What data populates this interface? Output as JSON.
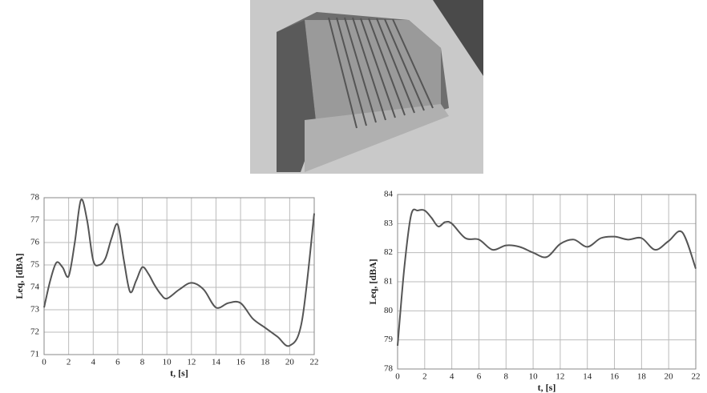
{
  "chart_data": [
    {
      "type": "line",
      "x_label": "t, [s]",
      "y_label": "Leq, [dBA]",
      "x": [
        0,
        0.5,
        1,
        1.5,
        2,
        2.5,
        3,
        3.5,
        4,
        4.5,
        5,
        5.5,
        6,
        6.5,
        7,
        7.5,
        8,
        8.5,
        9,
        9.5,
        10,
        11,
        12,
        13,
        14,
        15,
        16,
        17,
        18,
        19,
        20,
        21,
        22
      ],
      "series": [
        {
          "color": "#555555",
          "values": [
            73.1,
            74.3,
            75.1,
            74.9,
            74.5,
            76.0,
            77.9,
            77.0,
            75.2,
            75.0,
            75.3,
            76.2,
            76.8,
            75.2,
            73.8,
            74.3,
            74.9,
            74.6,
            74.1,
            73.7,
            73.5,
            73.9,
            74.2,
            73.9,
            73.1,
            73.3,
            73.3,
            72.6,
            72.2,
            71.8,
            71.4,
            72.5,
            77.3
          ]
        }
      ],
      "xlim": [
        0,
        22
      ],
      "xticks": [
        0,
        2,
        4,
        6,
        8,
        10,
        12,
        14,
        16,
        18,
        20,
        22
      ],
      "ylim": [
        71,
        78
      ],
      "yticks": [
        71,
        72,
        73,
        74,
        75,
        76,
        77,
        78
      ],
      "grid": true
    },
    {
      "type": "line",
      "x_label": "t, [s]",
      "y_label": "Leq, [dBA]",
      "x": [
        0,
        0.5,
        1,
        1.5,
        2,
        2.5,
        3,
        3.5,
        4,
        5,
        6,
        7,
        8,
        9,
        10,
        11,
        12,
        13,
        14,
        15,
        16,
        17,
        18,
        19,
        20,
        21,
        22
      ],
      "series": [
        {
          "color": "#555555",
          "values": [
            78.8,
            81.5,
            83.3,
            83.45,
            83.45,
            83.2,
            82.9,
            83.05,
            83.0,
            82.5,
            82.45,
            82.1,
            82.25,
            82.2,
            82.0,
            81.85,
            82.3,
            82.45,
            82.2,
            82.5,
            82.55,
            82.45,
            82.5,
            82.1,
            82.4,
            82.7,
            81.45
          ]
        }
      ],
      "xlim": [
        0,
        22
      ],
      "xticks": [
        0,
        2,
        4,
        6,
        8,
        10,
        12,
        14,
        16,
        18,
        20,
        22
      ],
      "ylim": [
        78,
        84
      ],
      "yticks": [
        78,
        79,
        80,
        81,
        82,
        83,
        84
      ],
      "grid": true
    }
  ]
}
